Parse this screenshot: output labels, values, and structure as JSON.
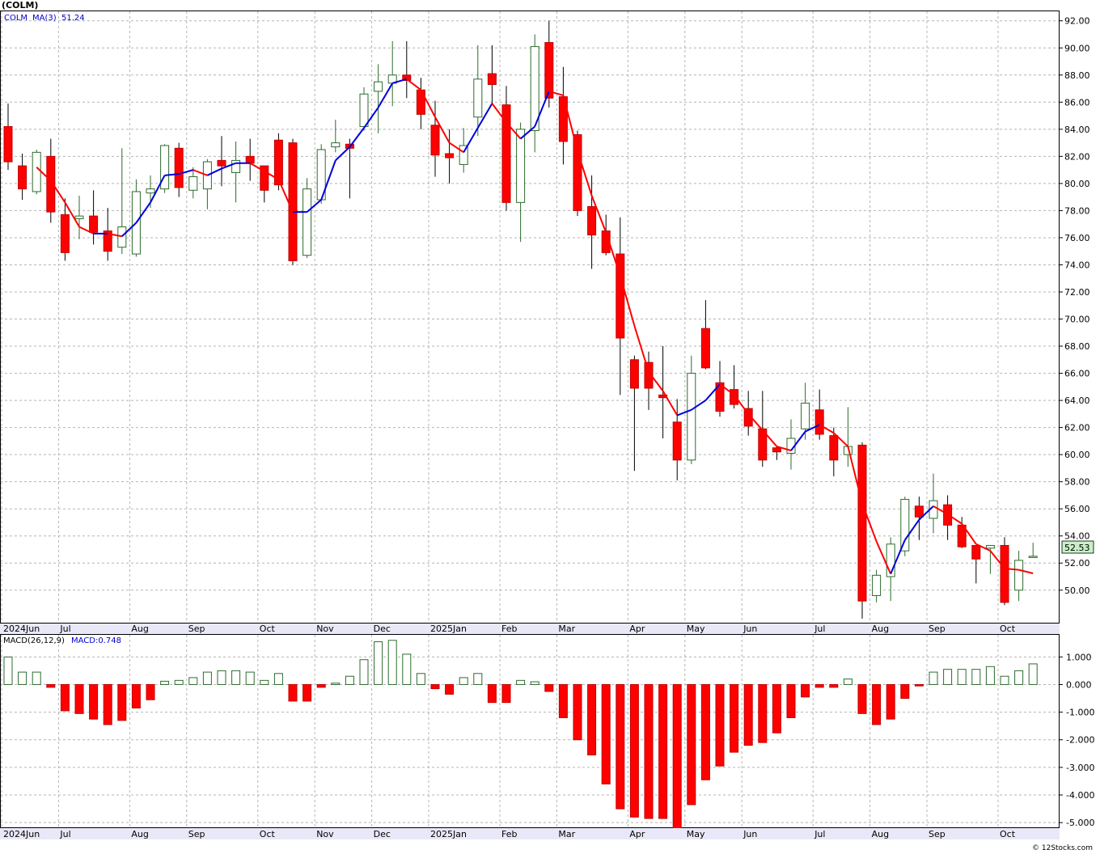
{
  "header": {
    "title": "(COLM)",
    "legend_symbol": "COLM",
    "legend_ma": "MA(3)",
    "legend_ma_value": "51.24",
    "last_price": "52.53",
    "macd_legend_name": "MACD(26,12,9)",
    "macd_legend_value": "MACD:0.748",
    "credit": "© 12Stocks.com"
  },
  "colors": {
    "up": "#2e6b2e",
    "down": "#ff0000",
    "down_outline": "#c00000",
    "ma_up": "#0000dd",
    "ma_down": "#ff0000",
    "legend_text": "#0000cc",
    "price_badge": "#c8f0c8"
  },
  "chart_data": [
    {
      "type": "candlestick",
      "title": "(COLM)",
      "ylim": [
        47.6,
        92.7
      ],
      "y_ticks": [
        "92.00",
        "90.00",
        "88.00",
        "86.00",
        "84.00",
        "82.00",
        "80.00",
        "78.00",
        "76.00",
        "74.00",
        "72.00",
        "70.00",
        "68.00",
        "66.00",
        "64.00",
        "62.00",
        "60.00",
        "58.00",
        "56.00",
        "54.00",
        "52.00",
        "50.00"
      ],
      "x_labels": [
        "2024Jun",
        "Jul",
        "Aug",
        "Sep",
        "Oct",
        "Nov",
        "Dec",
        "2025Jan",
        "Feb",
        "Mar",
        "Apr",
        "May",
        "Jun",
        "Jul",
        "Aug",
        "Sep",
        "Oct"
      ],
      "x_label_weeks": [
        0,
        4,
        9,
        13,
        18,
        22,
        26,
        30,
        35,
        39,
        44,
        48,
        52,
        57,
        61,
        65,
        70
      ],
      "series": [
        {
          "name": "COLM",
          "ohlc": [
            [
              84.2,
              85.9,
              81.0,
              81.6
            ],
            [
              81.3,
              82.2,
              78.8,
              79.6
            ],
            [
              79.4,
              82.5,
              79.2,
              82.3
            ],
            [
              82.0,
              83.3,
              77.1,
              77.9
            ],
            [
              77.7,
              78.9,
              74.3,
              74.9
            ],
            [
              77.4,
              79.1,
              75.9,
              77.6
            ],
            [
              77.6,
              79.5,
              75.5,
              76.4
            ],
            [
              76.5,
              78.2,
              74.3,
              75.0
            ],
            [
              75.3,
              82.6,
              74.8,
              76.8
            ],
            [
              74.8,
              80.3,
              74.6,
              79.4
            ],
            [
              79.3,
              80.6,
              78.2,
              79.6
            ],
            [
              79.6,
              82.9,
              79.3,
              82.8
            ],
            [
              82.6,
              83.0,
              79.0,
              79.7
            ],
            [
              79.5,
              81.2,
              78.9,
              80.5
            ],
            [
              79.6,
              81.8,
              78.1,
              81.6
            ],
            [
              81.7,
              83.5,
              79.8,
              81.3
            ],
            [
              80.8,
              83.1,
              78.6,
              81.7
            ],
            [
              82.0,
              83.3,
              80.2,
              81.5
            ],
            [
              81.3,
              81.3,
              78.6,
              79.5
            ],
            [
              83.2,
              83.7,
              79.5,
              79.9
            ],
            [
              83.0,
              83.3,
              74.0,
              74.3
            ],
            [
              74.7,
              80.4,
              74.5,
              79.6
            ],
            [
              78.8,
              82.9,
              78.5,
              82.5
            ],
            [
              82.7,
              84.7,
              82.3,
              83.0
            ],
            [
              82.9,
              83.3,
              78.9,
              82.6
            ],
            [
              84.2,
              87.1,
              83.9,
              86.6
            ],
            [
              86.8,
              88.8,
              83.7,
              87.5
            ],
            [
              87.4,
              90.5,
              85.7,
              88.0
            ],
            [
              88.0,
              90.5,
              86.3,
              87.6
            ],
            [
              86.9,
              87.8,
              84.0,
              85.1
            ],
            [
              84.3,
              86.1,
              80.5,
              82.1
            ],
            [
              82.2,
              84.0,
              80.0,
              81.9
            ],
            [
              81.4,
              84.1,
              80.8,
              82.8
            ],
            [
              84.9,
              90.2,
              83.5,
              87.7
            ],
            [
              88.1,
              90.2,
              85.8,
              87.3
            ],
            [
              85.8,
              87.2,
              78.0,
              78.6
            ],
            [
              78.6,
              84.5,
              75.7,
              84.0
            ],
            [
              83.9,
              91.0,
              82.3,
              90.1
            ],
            [
              90.4,
              92.0,
              85.6,
              86.3
            ],
            [
              86.4,
              88.6,
              81.4,
              83.1
            ],
            [
              83.6,
              83.9,
              77.6,
              78.0
            ],
            [
              78.3,
              80.6,
              73.7,
              76.2
            ],
            [
              76.5,
              77.7,
              74.7,
              74.9
            ],
            [
              74.8,
              77.5,
              64.4,
              68.6
            ],
            [
              67.0,
              67.3,
              58.8,
              64.9
            ],
            [
              66.8,
              67.6,
              63.3,
              64.9
            ],
            [
              64.4,
              68.0,
              61.2,
              64.2
            ],
            [
              62.4,
              64.1,
              58.1,
              59.6
            ],
            [
              59.6,
              67.3,
              59.3,
              66.0
            ],
            [
              69.3,
              71.4,
              66.3,
              66.4
            ],
            [
              65.3,
              66.9,
              62.8,
              63.2
            ],
            [
              64.8,
              66.6,
              63.4,
              63.7
            ],
            [
              63.4,
              64.7,
              61.4,
              62.1
            ],
            [
              61.9,
              64.7,
              59.1,
              59.6
            ],
            [
              60.5,
              60.6,
              59.6,
              60.2
            ],
            [
              60.1,
              62.6,
              58.9,
              61.2
            ],
            [
              61.9,
              65.3,
              61.1,
              63.8
            ],
            [
              63.3,
              64.8,
              61.1,
              61.5
            ],
            [
              61.4,
              62.0,
              58.4,
              59.6
            ],
            [
              60.0,
              63.5,
              59.1,
              60.6
            ],
            [
              60.7,
              60.9,
              47.9,
              49.2
            ],
            [
              49.6,
              51.5,
              49.1,
              51.1
            ],
            [
              51.0,
              53.9,
              49.2,
              53.4
            ],
            [
              52.9,
              56.9,
              52.5,
              56.7
            ],
            [
              56.2,
              56.9,
              53.7,
              55.4
            ],
            [
              55.3,
              58.6,
              54.2,
              56.6
            ],
            [
              56.3,
              57.0,
              53.7,
              54.8
            ],
            [
              54.8,
              55.4,
              53.1,
              53.2
            ],
            [
              53.3,
              53.3,
              50.5,
              52.3
            ],
            [
              53.1,
              53.3,
              51.2,
              53.3
            ],
            [
              53.3,
              53.9,
              48.9,
              49.1
            ],
            [
              50.0,
              52.9,
              49.2,
              52.2
            ],
            [
              52.5,
              53.5,
              52.4,
              52.5
            ]
          ]
        },
        {
          "name": "MA(3)",
          "values": [
            null,
            null,
            81.2,
            80.2,
            78.6,
            76.8,
            76.3,
            76.3,
            76.1,
            77.1,
            78.6,
            80.6,
            80.7,
            81.0,
            80.6,
            81.1,
            81.5,
            81.5,
            80.9,
            80.3,
            77.9,
            77.9,
            78.8,
            81.7,
            82.7,
            84.1,
            85.6,
            87.4,
            87.7,
            86.9,
            84.9,
            83.0,
            82.3,
            84.1,
            85.9,
            84.5,
            83.3,
            84.2,
            86.8,
            86.5,
            82.4,
            79.1,
            76.4,
            73.2,
            69.5,
            66.1,
            64.7,
            62.9,
            63.3,
            64.0,
            65.2,
            64.4,
            63.0,
            61.8,
            60.6,
            60.3,
            61.7,
            62.2,
            61.6,
            60.6,
            56.4,
            53.6,
            51.2,
            53.7,
            55.2,
            56.2,
            55.6,
            54.9,
            53.4,
            52.9,
            51.6,
            51.5,
            51.24
          ]
        }
      ]
    },
    {
      "type": "bar",
      "title": "MACD(26,12,9)",
      "ylim": [
        -5.2,
        1.8
      ],
      "y_ticks": [
        "1.000",
        "0.000",
        "-1.000",
        "-2.000",
        "-3.000",
        "-4.000",
        "-5.000"
      ],
      "series": [
        {
          "name": "MACD(26,12,9)",
          "values": [
            1.0,
            0.45,
            0.45,
            -0.1,
            -0.95,
            -1.05,
            -1.25,
            -1.45,
            -1.3,
            -0.85,
            -0.55,
            0.12,
            0.15,
            0.25,
            0.45,
            0.5,
            0.5,
            0.45,
            0.15,
            0.4,
            -0.6,
            -0.6,
            -0.1,
            0.05,
            0.3,
            0.9,
            1.55,
            1.6,
            1.1,
            0.4,
            -0.15,
            -0.35,
            0.25,
            0.4,
            -0.65,
            -0.65,
            0.15,
            0.1,
            -0.25,
            -1.2,
            -2.0,
            -2.55,
            -3.6,
            -4.5,
            -4.8,
            -4.85,
            -4.85,
            -5.35,
            -4.35,
            -3.45,
            -2.95,
            -2.45,
            -2.2,
            -2.1,
            -1.75,
            -1.2,
            -0.45,
            -0.1,
            -0.1,
            0.2,
            -1.05,
            -1.45,
            -1.25,
            -0.5,
            -0.05,
            0.45,
            0.55,
            0.55,
            0.55,
            0.65,
            0.3,
            0.5,
            0.748
          ]
        }
      ]
    }
  ]
}
